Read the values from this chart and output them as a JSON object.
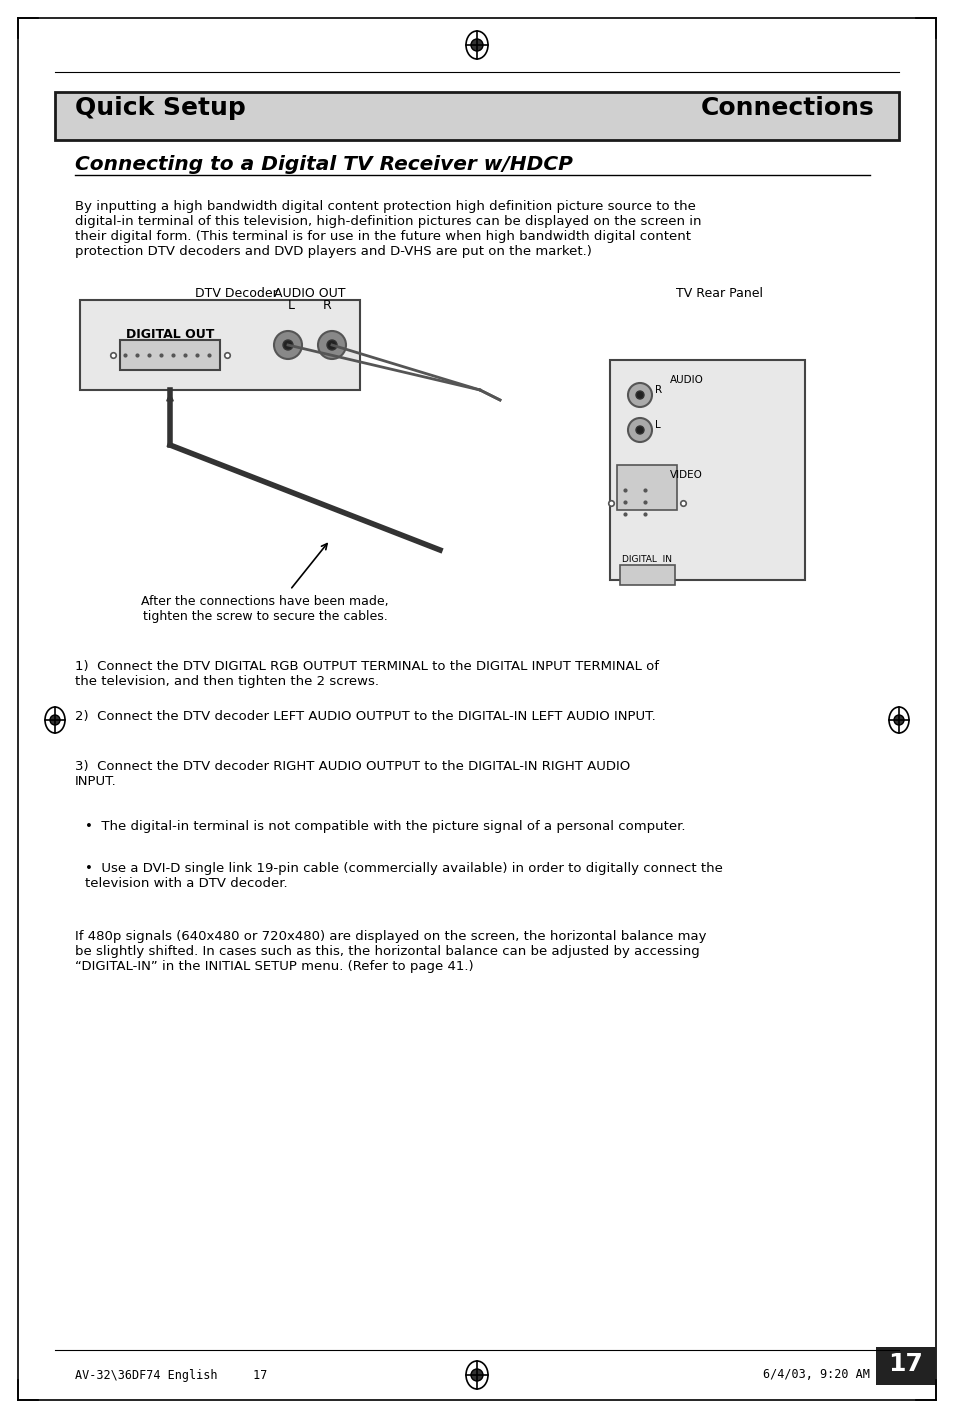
{
  "bg_color": "#ffffff",
  "page_border_color": "#000000",
  "header_bg": "#d0d0d0",
  "header_text_left": "Quick Setup",
  "header_text_right": "Connections",
  "section_title": "Connecting to a Digital TV Receiver w/HDCP",
  "body_text": "By inputting a high bandwidth digital content protection high definition picture source to the\ndigital-in terminal of this television, high-definition pictures can be displayed on the screen in\ntheir digital form. (This terminal is for use in the future when high bandwidth digital content\nprotection DTV decoders and DVD players and D-VHS are put on the market.)",
  "diagram_label_dtv": "DTV Decoder",
  "diagram_label_audio": "AUDIO OUT",
  "diagram_label_lr": "L       R",
  "diagram_label_digital_out": "DIGITAL OUT",
  "diagram_label_tv": "TV Rear Panel",
  "diagram_label_r": "R",
  "diagram_label_audio_r": "AUDIO",
  "diagram_label_l": "L",
  "diagram_label_video": "VIDEO",
  "diagram_label_digital_in": "DIGITAL  IN",
  "caption_text": "After the connections have been made,\ntighten the screw to secure the cables.",
  "numbered_items": [
    "Connect the DTV DIGITAL RGB OUTPUT TERMINAL to the DIGITAL INPUT TERMINAL of\nthe television, and then tighten the 2 screws.",
    "Connect the DTV decoder LEFT AUDIO OUTPUT to the DIGITAL-IN LEFT AUDIO INPUT.",
    "Connect the DTV decoder RIGHT AUDIO OUTPUT to the DIGITAL-IN RIGHT AUDIO\nINPUT."
  ],
  "bullet_items": [
    "The digital-in terminal is not compatible with the picture signal of a personal computer.",
    "Use a DVI-D single link 19-pin cable (commercially available) in order to digitally connect the\ntelevision with a DTV decoder."
  ],
  "footer_para": "If 480p signals (640x480 or 720x480) are displayed on the screen, the horizontal balance may\nbe slightly shifted. In cases such as this, the horizontal balance can be adjusted by accessing\n“DIGITAL-IN” in the INITIAL SETUP menu. (Refer to page 41.)",
  "page_number": "17",
  "footer_left": "AV-32\\36DF74 English     17",
  "footer_right": "6/4/03, 9:20 AM",
  "corner_marks_color": "#000000"
}
